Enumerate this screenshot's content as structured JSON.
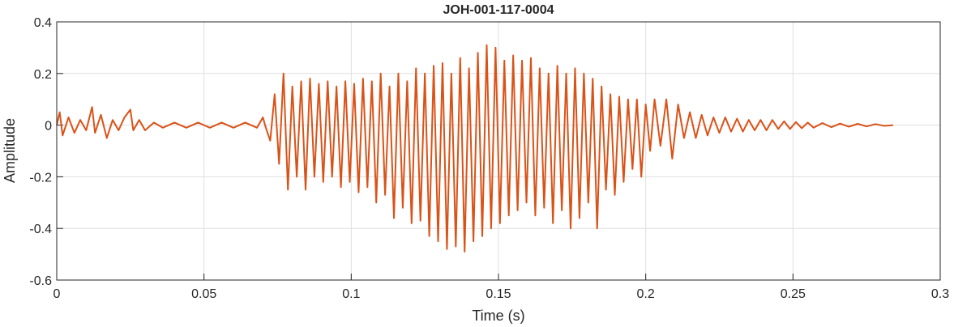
{
  "chart_data": {
    "type": "line",
    "title": "JOH-001-117-0004",
    "xlabel": "Time (s)",
    "ylabel": "Amplitude",
    "color": "#d95319",
    "grid": true,
    "xlim": [
      0,
      0.3
    ],
    "ylim": [
      -0.6,
      0.4
    ],
    "xticks": [
      0,
      0.05,
      0.1,
      0.15,
      0.2,
      0.25,
      0.3
    ],
    "yticks": [
      -0.6,
      -0.4,
      -0.2,
      0,
      0.2,
      0.4
    ],
    "x": [
      0,
      0.001,
      0.002,
      0.004,
      0.006,
      0.008,
      0.01,
      0.012,
      0.013,
      0.015,
      0.017,
      0.019,
      0.021,
      0.023,
      0.025,
      0.026,
      0.028,
      0.03,
      0.033,
      0.036,
      0.04,
      0.044,
      0.048,
      0.052,
      0.056,
      0.06,
      0.064,
      0.068,
      0.07,
      0.071,
      0.0725,
      0.074,
      0.0755,
      0.077,
      0.0785,
      0.08,
      0.0815,
      0.083,
      0.0845,
      0.086,
      0.0875,
      0.089,
      0.0905,
      0.092,
      0.0935,
      0.095,
      0.0965,
      0.098,
      0.0995,
      0.101,
      0.1025,
      0.104,
      0.1055,
      0.107,
      0.1085,
      0.11,
      0.1115,
      0.113,
      0.1145,
      0.116,
      0.1175,
      0.119,
      0.1205,
      0.122,
      0.1235,
      0.125,
      0.1265,
      0.128,
      0.1295,
      0.131,
      0.1325,
      0.134,
      0.1355,
      0.137,
      0.1385,
      0.14,
      0.1415,
      0.143,
      0.1445,
      0.146,
      0.1475,
      0.149,
      0.1505,
      0.152,
      0.1535,
      0.155,
      0.1565,
      0.158,
      0.1595,
      0.161,
      0.1625,
      0.164,
      0.1655,
      0.167,
      0.1685,
      0.17,
      0.1715,
      0.173,
      0.1745,
      0.176,
      0.1775,
      0.179,
      0.1805,
      0.182,
      0.1835,
      0.185,
      0.1865,
      0.188,
      0.1895,
      0.191,
      0.1925,
      0.194,
      0.1955,
      0.197,
      0.1985,
      0.2,
      0.2015,
      0.203,
      0.205,
      0.207,
      0.209,
      0.211,
      0.213,
      0.215,
      0.217,
      0.219,
      0.221,
      0.223,
      0.225,
      0.227,
      0.229,
      0.231,
      0.233,
      0.235,
      0.237,
      0.239,
      0.241,
      0.243,
      0.245,
      0.247,
      0.249,
      0.251,
      0.253,
      0.255,
      0.257,
      0.26,
      0.263,
      0.266,
      0.269,
      0.272,
      0.275,
      0.278,
      0.281,
      0.284
    ],
    "values": [
      0,
      0.05,
      -0.04,
      0.03,
      -0.03,
      0.02,
      -0.02,
      0.07,
      -0.03,
      0.04,
      -0.05,
      0.02,
      -0.02,
      0.03,
      0.06,
      -0.02,
      0.02,
      -0.02,
      0.01,
      -0.01,
      0.01,
      -0.01,
      0.01,
      -0.01,
      0.01,
      -0.01,
      0.01,
      -0.01,
      0.03,
      -0.01,
      -0.06,
      0.12,
      -0.15,
      0.2,
      -0.25,
      0.15,
      -0.2,
      0.17,
      -0.25,
      0.18,
      -0.2,
      0.16,
      -0.22,
      0.17,
      -0.2,
      0.15,
      -0.24,
      0.17,
      -0.22,
      0.16,
      -0.26,
      0.18,
      -0.24,
      0.17,
      -0.3,
      0.2,
      -0.27,
      0.15,
      -0.36,
      0.2,
      -0.32,
      0.17,
      -0.38,
      0.22,
      -0.37,
      0.2,
      -0.43,
      0.23,
      -0.45,
      0.24,
      -0.48,
      0.2,
      -0.47,
      0.26,
      -0.49,
      0.22,
      -0.45,
      0.28,
      -0.43,
      0.31,
      -0.4,
      0.3,
      -0.38,
      0.25,
      -0.35,
      0.27,
      -0.33,
      0.25,
      -0.3,
      0.26,
      -0.35,
      0.22,
      -0.32,
      0.2,
      -0.38,
      0.23,
      -0.33,
      0.2,
      -0.4,
      0.22,
      -0.36,
      0.2,
      -0.3,
      0.18,
      -0.4,
      0.15,
      -0.25,
      0.12,
      -0.27,
      0.11,
      -0.22,
      0.1,
      -0.17,
      0.1,
      -0.2,
      0.08,
      -0.1,
      0.1,
      -0.08,
      0.1,
      -0.13,
      0.08,
      -0.05,
      0.05,
      -0.05,
      0.04,
      -0.04,
      0.03,
      -0.03,
      0.03,
      -0.025,
      0.025,
      -0.025,
      0.02,
      -0.02,
      0.02,
      -0.02,
      0.02,
      -0.015,
      0.015,
      -0.015,
      0.012,
      -0.012,
      0.01,
      -0.01,
      0.008,
      -0.008,
      0.006,
      -0.006,
      0.005,
      -0.005,
      0.004,
      -0.003,
      0
    ]
  }
}
